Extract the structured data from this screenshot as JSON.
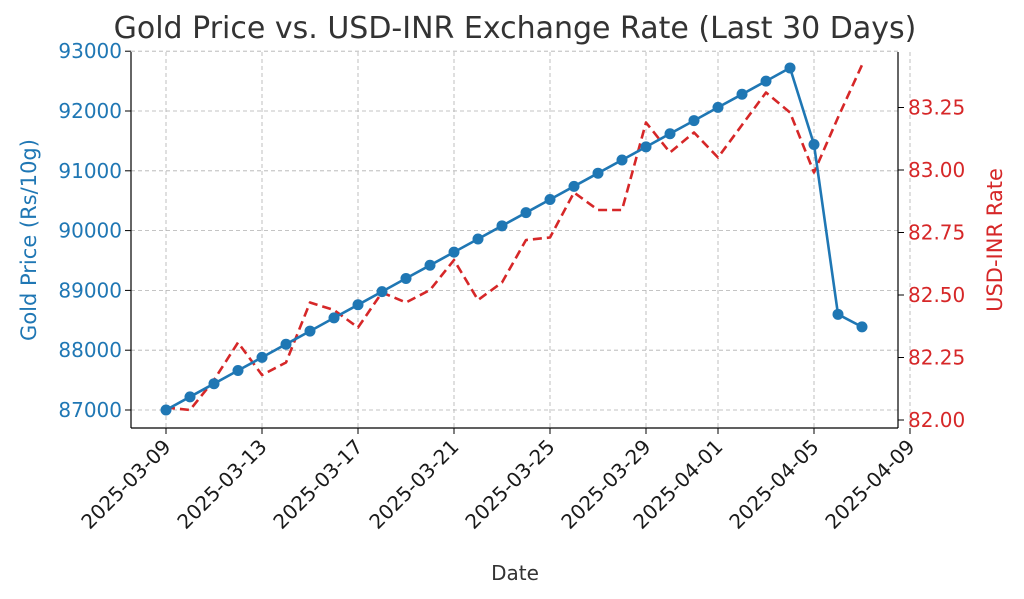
{
  "chart_data": {
    "type": "line",
    "title": "Gold Price vs. USD-INR Exchange Rate (Last 30 Days)",
    "xlabel": "Date",
    "ylabel_left": "Gold Price (Rs/10g)",
    "ylabel_right": "USD-INR Rate",
    "colors": {
      "gold": "#1f77b4",
      "usdinr": "#d62728",
      "grid": "#b0b0b0",
      "text": "#333333"
    },
    "grid": true,
    "x_ticks": [
      "2025-03-09",
      "2025-03-13",
      "2025-03-17",
      "2025-03-21",
      "2025-03-25",
      "2025-03-29",
      "2025-04-01",
      "2025-04-05",
      "2025-04-09"
    ],
    "y_left_ticks": [
      87000,
      88000,
      89000,
      90000,
      91000,
      92000,
      93000
    ],
    "y_right_ticks": [
      "82.00",
      "82.25",
      "82.50",
      "82.75",
      "83.00",
      "83.25"
    ],
    "ylim_left": [
      86700,
      93000
    ],
    "ylim_right": [
      81.98,
      83.48
    ],
    "series": [
      {
        "style": "solid-markers",
        "color": "#1f77b4",
        "axis": "left",
        "points": [
          [
            "2025-03-09",
            87000
          ],
          [
            "2025-03-10",
            87220
          ],
          [
            "2025-03-11",
            87440
          ],
          [
            "2025-03-12",
            87660
          ],
          [
            "2025-03-13",
            87880
          ],
          [
            "2025-03-14",
            88100
          ],
          [
            "2025-03-15",
            88320
          ],
          [
            "2025-03-16",
            88540
          ],
          [
            "2025-03-17",
            88760
          ],
          [
            "2025-03-18",
            88980
          ],
          [
            "2025-03-19",
            89200
          ],
          [
            "2025-03-20",
            89420
          ],
          [
            "2025-03-21",
            89640
          ],
          [
            "2025-03-22",
            89860
          ],
          [
            "2025-03-23",
            90080
          ],
          [
            "2025-03-24",
            90300
          ],
          [
            "2025-03-25",
            90520
          ],
          [
            "2025-03-26",
            90740
          ],
          [
            "2025-03-27",
            90960
          ],
          [
            "2025-03-28",
            91180
          ],
          [
            "2025-03-29",
            91400
          ],
          [
            "2025-03-30",
            91620
          ],
          [
            "2025-03-31",
            91840
          ],
          [
            "2025-04-01",
            92060
          ],
          [
            "2025-04-02",
            92280
          ],
          [
            "2025-04-03",
            92500
          ],
          [
            "2025-04-04",
            92720
          ],
          [
            "2025-04-05",
            91440
          ],
          [
            "2025-04-06",
            88600
          ],
          [
            "2025-04-07",
            88390
          ]
        ]
      },
      {
        "style": "dashed",
        "color": "#d62728",
        "axis": "right",
        "points": [
          [
            "2025-03-09",
            82.05
          ],
          [
            "2025-03-10",
            82.04
          ],
          [
            "2025-03-11",
            82.16
          ],
          [
            "2025-03-12",
            82.31
          ],
          [
            "2025-03-13",
            82.18
          ],
          [
            "2025-03-14",
            82.23
          ],
          [
            "2025-03-15",
            82.47
          ],
          [
            "2025-03-16",
            82.44
          ],
          [
            "2025-03-17",
            82.37
          ],
          [
            "2025-03-18",
            82.51
          ],
          [
            "2025-03-19",
            82.47
          ],
          [
            "2025-03-20",
            82.52
          ],
          [
            "2025-03-21",
            82.64
          ],
          [
            "2025-03-22",
            82.48
          ],
          [
            "2025-03-23",
            82.55
          ],
          [
            "2025-03-24",
            82.72
          ],
          [
            "2025-03-25",
            82.73
          ],
          [
            "2025-03-26",
            82.91
          ],
          [
            "2025-03-27",
            82.84
          ],
          [
            "2025-03-28",
            82.84
          ],
          [
            "2025-03-29",
            83.19
          ],
          [
            "2025-03-30",
            83.07
          ],
          [
            "2025-03-31",
            83.15
          ],
          [
            "2025-04-01",
            83.05
          ],
          [
            "2025-04-02",
            83.18
          ],
          [
            "2025-04-03",
            83.31
          ],
          [
            "2025-04-04",
            83.23
          ],
          [
            "2025-04-05",
            82.99
          ],
          [
            "2025-04-06",
            83.21
          ],
          [
            "2025-04-07",
            83.42
          ]
        ]
      }
    ]
  }
}
